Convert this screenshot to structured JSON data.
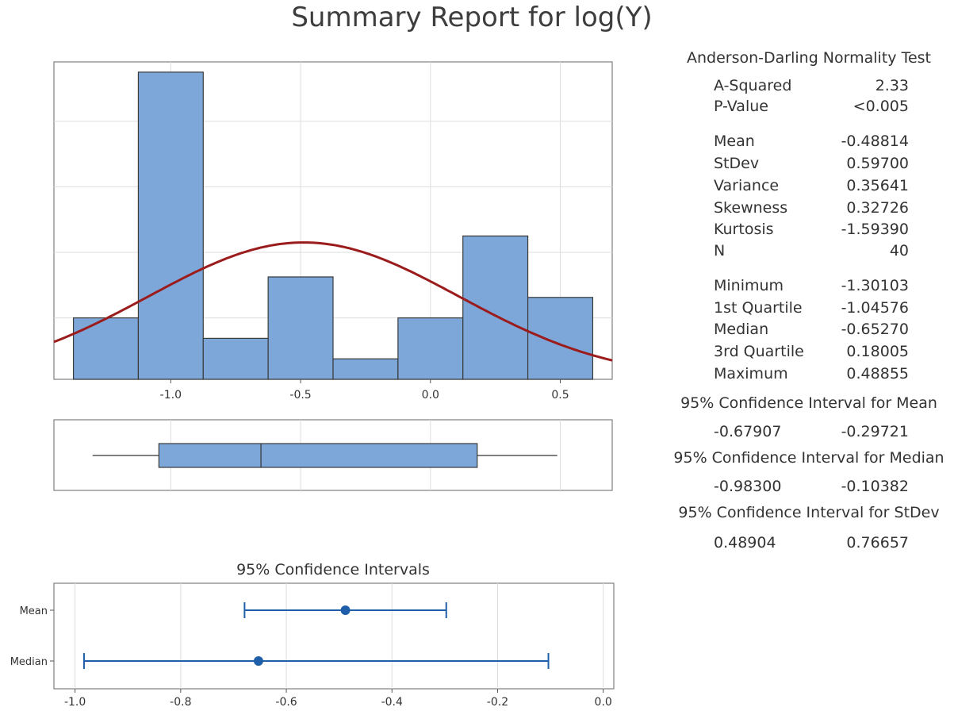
{
  "title": "Summary Report for log(Y)",
  "colors": {
    "bar_fill": "#7da7d9",
    "bar_stroke": "#3a3a3a",
    "curve": "#9b1c1c",
    "ci": "#1f5ea8",
    "grid": "#dddddd",
    "frame": "#7f7f7f"
  },
  "chart_data": [
    {
      "type": "histogram",
      "bins": [
        {
          "x0": -1.375,
          "x1": -1.125,
          "count": 3
        },
        {
          "x0": -1.125,
          "x1": -0.875,
          "count": 15
        },
        {
          "x0": -0.875,
          "x1": -0.625,
          "count": 2
        },
        {
          "x0": -0.625,
          "x1": -0.375,
          "count": 5
        },
        {
          "x0": -0.375,
          "x1": -0.125,
          "count": 1
        },
        {
          "x0": -0.125,
          "x1": 0.125,
          "count": 3
        },
        {
          "x0": 0.125,
          "x1": 0.375,
          "count": 7
        },
        {
          "x0": 0.375,
          "x1": 0.625,
          "count": 4
        }
      ],
      "xticks": [
        -1.0,
        -0.5,
        0.0,
        0.5
      ],
      "xtick_labels": [
        "-1.0",
        "-0.5",
        "0.0",
        "0.5"
      ],
      "xlim": [
        -1.45,
        0.7
      ],
      "ylim": [
        0,
        15.5
      ],
      "normal_fit": {
        "mean": -0.48814,
        "stdev": 0.597,
        "n": 40,
        "binwidth": 0.25
      }
    },
    {
      "type": "boxplot",
      "min": -1.30103,
      "q1": -1.04576,
      "median": -0.6527,
      "q3": 0.18005,
      "max": 0.48855,
      "xlim": [
        -1.45,
        0.7
      ]
    },
    {
      "type": "interval",
      "title": "95% Confidence Intervals",
      "categories": [
        "Mean",
        "Median"
      ],
      "intervals": [
        {
          "name": "Mean",
          "estimate": -0.48814,
          "lower": -0.67907,
          "upper": -0.29721
        },
        {
          "name": "Median",
          "estimate": -0.6527,
          "lower": -0.983,
          "upper": -0.10382
        }
      ],
      "xticks": [
        -1.0,
        -0.8,
        -0.6,
        -0.4,
        -0.2,
        0.0
      ],
      "xtick_labels": [
        "-1.0",
        "-0.8",
        "-0.6",
        "-0.4",
        "-0.2",
        "0.0"
      ],
      "xlim": [
        -1.04,
        0.02
      ]
    }
  ],
  "stats": {
    "ad_title": "Anderson-Darling Normality Test",
    "ad": [
      {
        "label": "A-Squared",
        "value": "2.33"
      },
      {
        "label": "P-Value",
        "value": "<0.005"
      }
    ],
    "moments": [
      {
        "label": "Mean",
        "value": "-0.48814"
      },
      {
        "label": "StDev",
        "value": "0.59700"
      },
      {
        "label": "Variance",
        "value": "0.35641"
      },
      {
        "label": "Skewness",
        "value": "0.32726"
      },
      {
        "label": "Kurtosis",
        "value": "-1.59390"
      },
      {
        "label": "N",
        "value": "40"
      }
    ],
    "quartiles": [
      {
        "label": "Minimum",
        "value": "-1.30103"
      },
      {
        "label": "1st Quartile",
        "value": "-1.04576"
      },
      {
        "label": "Median",
        "value": "-0.65270"
      },
      {
        "label": "3rd Quartile",
        "value": "0.18005"
      },
      {
        "label": "Maximum",
        "value": "0.48855"
      }
    ],
    "ci_mean_title": "95% Confidence Interval for Mean",
    "ci_mean": {
      "lower": "-0.67907",
      "upper": "-0.29721"
    },
    "ci_median_title": "95% Confidence Interval for Median",
    "ci_median": {
      "lower": "-0.98300",
      "upper": "-0.10382"
    },
    "ci_stdev_title": "95% Confidence Interval for StDev",
    "ci_stdev": {
      "lower": "0.48904",
      "upper": "0.76657"
    }
  }
}
